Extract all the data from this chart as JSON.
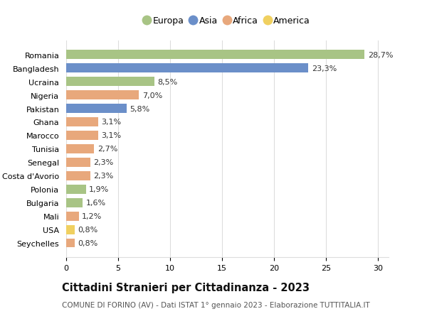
{
  "countries": [
    "Romania",
    "Bangladesh",
    "Ucraina",
    "Nigeria",
    "Pakistan",
    "Ghana",
    "Marocco",
    "Tunisia",
    "Senegal",
    "Costa d'Avorio",
    "Polonia",
    "Bulgaria",
    "Mali",
    "USA",
    "Seychelles"
  ],
  "values": [
    28.7,
    23.3,
    8.5,
    7.0,
    5.8,
    3.1,
    3.1,
    2.7,
    2.3,
    2.3,
    1.9,
    1.6,
    1.2,
    0.8,
    0.8
  ],
  "labels": [
    "28,7%",
    "23,3%",
    "8,5%",
    "7,0%",
    "5,8%",
    "3,1%",
    "3,1%",
    "2,7%",
    "2,3%",
    "2,3%",
    "1,9%",
    "1,6%",
    "1,2%",
    "0,8%",
    "0,8%"
  ],
  "continents": [
    "Europa",
    "Asia",
    "Europa",
    "Africa",
    "Asia",
    "Africa",
    "Africa",
    "Africa",
    "Africa",
    "Africa",
    "Europa",
    "Europa",
    "Africa",
    "America",
    "Africa"
  ],
  "continent_colors": {
    "Europa": "#a8c485",
    "Asia": "#6b8fc9",
    "Africa": "#e8a87c",
    "America": "#f0d060"
  },
  "legend_order": [
    "Europa",
    "Asia",
    "Africa",
    "America"
  ],
  "title": "Cittadini Stranieri per Cittadinanza - 2023",
  "subtitle": "COMUNE DI FORINO (AV) - Dati ISTAT 1° gennaio 2023 - Elaborazione TUTTITALIA.IT",
  "xlim": [
    0,
    31
  ],
  "xticks": [
    0,
    5,
    10,
    15,
    20,
    25,
    30
  ],
  "bg_color": "#ffffff",
  "grid_color": "#dddddd",
  "bar_height": 0.65,
  "label_fontsize": 8.0,
  "tick_fontsize": 8.0,
  "title_fontsize": 10.5,
  "subtitle_fontsize": 7.5
}
